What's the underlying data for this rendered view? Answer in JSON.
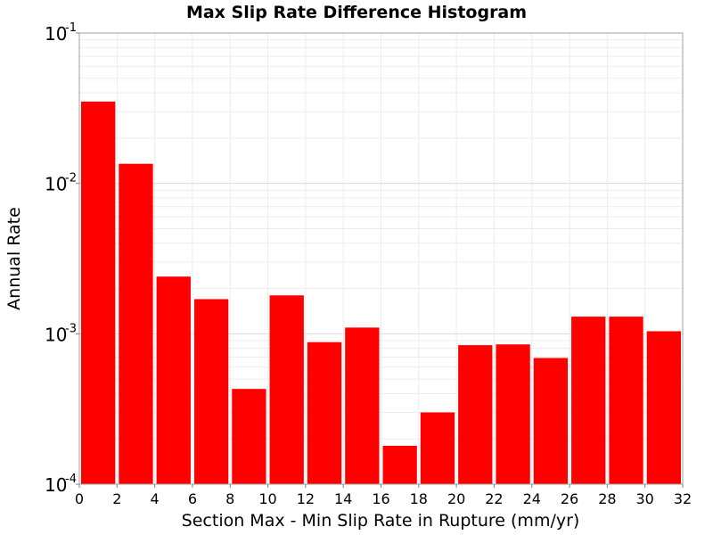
{
  "chart_data": {
    "type": "bar",
    "title": "Max Slip Rate Difference Histogram",
    "xlabel": "Section Max - Min Slip Rate in Rupture (mm/yr)",
    "ylabel": "Annual Rate",
    "y_scale": "log",
    "xlim": [
      0,
      32
    ],
    "ylim": [
      0.0001,
      0.1
    ],
    "grid": true,
    "bar_color": "#ff0000",
    "bin_width": 2,
    "x_ticks": [
      "0",
      "2",
      "4",
      "6",
      "8",
      "10",
      "12",
      "14",
      "16",
      "18",
      "20",
      "22",
      "24",
      "26",
      "28",
      "30",
      "32"
    ],
    "y_ticks": [
      {
        "base": "10",
        "exp": "-4"
      },
      {
        "base": "10",
        "exp": "-3"
      },
      {
        "base": "10",
        "exp": "-2"
      },
      {
        "base": "10",
        "exp": "-1"
      }
    ],
    "bins": [
      {
        "x_start": 0,
        "value": 0.035
      },
      {
        "x_start": 2,
        "value": 0.0135
      },
      {
        "x_start": 4,
        "value": 0.0024
      },
      {
        "x_start": 6,
        "value": 0.0017
      },
      {
        "x_start": 8,
        "value": 0.00043
      },
      {
        "x_start": 10,
        "value": 0.0018
      },
      {
        "x_start": 12,
        "value": 0.00088
      },
      {
        "x_start": 14,
        "value": 0.0011
      },
      {
        "x_start": 16,
        "value": 0.00018
      },
      {
        "x_start": 18,
        "value": 0.0003
      },
      {
        "x_start": 20,
        "value": 0.00084
      },
      {
        "x_start": 22,
        "value": 0.00085
      },
      {
        "x_start": 24,
        "value": 0.00069
      },
      {
        "x_start": 26,
        "value": 0.0013
      },
      {
        "x_start": 28,
        "value": 0.0013
      },
      {
        "x_start": 30,
        "value": 0.00104
      }
    ]
  }
}
